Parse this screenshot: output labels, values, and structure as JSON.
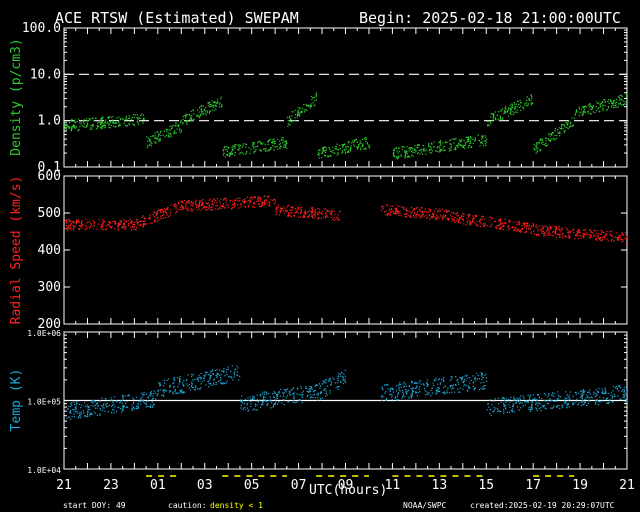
{
  "header": {
    "title": "ACE RTSW (Estimated) SWEPAM",
    "begin": "Begin: 2025-02-18 21:00:00UTC"
  },
  "footer": {
    "start_doy": "start DOY:  49",
    "caution_label": "caution:",
    "caution_text": "density < 1",
    "source": "NOAA/SWPC",
    "created": "created:2025-02-19 20:29:07UTC"
  },
  "colors": {
    "density": "#2ecc2e",
    "speed": "#ff2020",
    "temp": "#20a8d8",
    "caution": "#ffff00"
  },
  "chart_data": [
    {
      "type": "scatter",
      "name": "density",
      "ylabel": "Density (p/cm3)",
      "yscale": "log",
      "ylim": [
        0.1,
        100
      ],
      "yticks": [
        "0.1",
        "1.0",
        "10.0",
        "100.0"
      ],
      "xlabel": "UTC(hours)",
      "xticks": [
        "21",
        "23",
        "01",
        "03",
        "05",
        "07",
        "09",
        "11",
        "13",
        "15",
        "17",
        "19",
        "21"
      ],
      "xlim_hours": [
        0,
        48
      ],
      "reference_lines": [
        1.0,
        10.0
      ],
      "segments": [
        {
          "x": [
            0,
            7
          ],
          "y": [
            0.8,
            1.1
          ]
        },
        {
          "x": [
            7,
            10
          ],
          "y": [
            0.35,
            0.8
          ]
        },
        {
          "x": [
            10,
            13.5
          ],
          "y": [
            1.0,
            2.8
          ]
        },
        {
          "x": [
            13.5,
            19
          ],
          "y": [
            0.22,
            0.35
          ]
        },
        {
          "x": [
            19,
            21.5
          ],
          "y": [
            1.0,
            3.2
          ]
        },
        {
          "x": [
            21.5,
            26
          ],
          "y": [
            0.2,
            0.35
          ]
        },
        {
          "x": [
            28,
            36
          ],
          "y": [
            0.2,
            0.4
          ]
        },
        {
          "x": [
            36,
            40
          ],
          "y": [
            1.0,
            3.0
          ]
        },
        {
          "x": [
            40,
            43.5
          ],
          "y": [
            0.25,
            1.0
          ]
        },
        {
          "x": [
            43.5,
            48
          ],
          "y": [
            1.5,
            3.0
          ]
        }
      ]
    },
    {
      "type": "scatter",
      "name": "speed",
      "ylabel": "Radial Speed (km/s)",
      "ylim": [
        200,
        600
      ],
      "yticks": [
        "200",
        "300",
        "400",
        "500",
        "600"
      ],
      "gaps_hours": [
        [
          24,
          27
        ]
      ],
      "segments": [
        {
          "x": [
            0,
            6
          ],
          "y": [
            470,
            470
          ]
        },
        {
          "x": [
            6,
            10
          ],
          "y": [
            470,
            520
          ]
        },
        {
          "x": [
            10,
            18
          ],
          "y": [
            520,
            535
          ]
        },
        {
          "x": [
            18,
            23.5
          ],
          "y": [
            510,
            495
          ]
        },
        {
          "x": [
            27,
            33
          ],
          "y": [
            510,
            495
          ]
        },
        {
          "x": [
            33,
            40
          ],
          "y": [
            490,
            460
          ]
        },
        {
          "x": [
            40,
            48
          ],
          "y": [
            455,
            435
          ]
        }
      ]
    },
    {
      "type": "scatter",
      "name": "temp",
      "ylabel": "Temp (K)",
      "yscale": "log",
      "ylim": [
        10000,
        1000000
      ],
      "yticks": [
        "1.0E+04",
        "1.0E+05",
        "1.0E+06"
      ],
      "reference_lines": [
        100000
      ],
      "gaps_hours": [
        [
          24,
          27
        ]
      ],
      "segments": [
        {
          "x": [
            0,
            8
          ],
          "y": [
            70000,
            110000
          ]
        },
        {
          "x": [
            8,
            15
          ],
          "y": [
            150000,
            260000
          ]
        },
        {
          "x": [
            15,
            22
          ],
          "y": [
            90000,
            140000
          ]
        },
        {
          "x": [
            22,
            24
          ],
          "y": [
            150000,
            220000
          ]
        },
        {
          "x": [
            27,
            36
          ],
          "y": [
            130000,
            200000
          ]
        },
        {
          "x": [
            36,
            48
          ],
          "y": [
            80000,
            130000
          ]
        }
      ]
    }
  ]
}
